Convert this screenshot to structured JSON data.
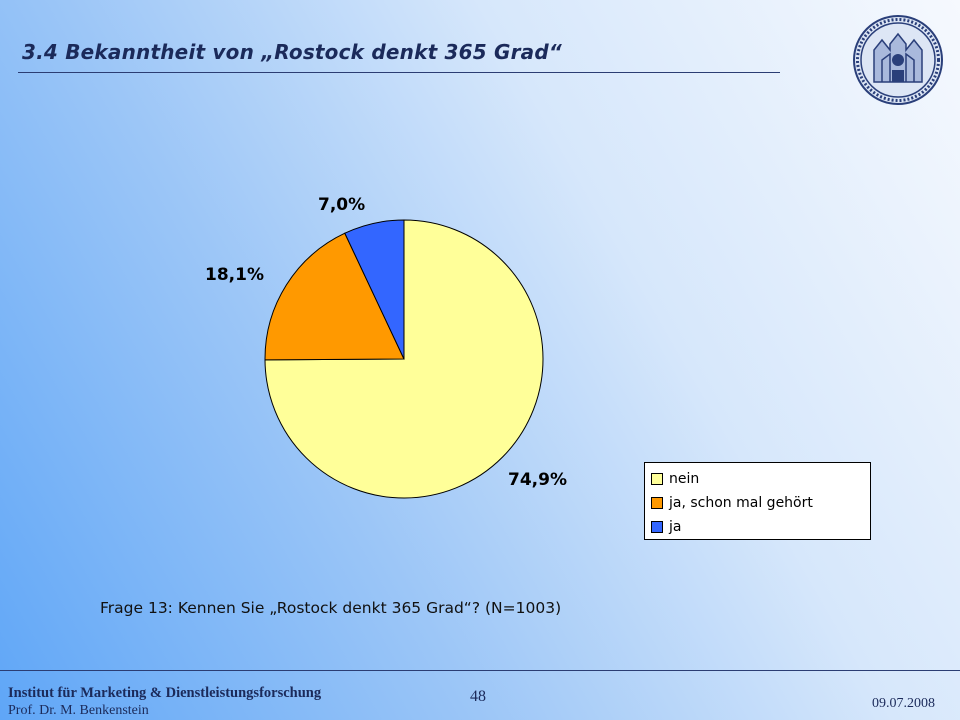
{
  "slide": {
    "title": "3.4 Bekanntheit von „Rostock denkt 365 Grad“",
    "caption": "Frage 13: Kennen Sie „Rostock denkt 365 Grad“? (N=1003)"
  },
  "footer": {
    "institute": "Institut für Marketing & Dienstleistungsforschung",
    "professor": "Prof. Dr. M. Benkenstein",
    "page_number": "48",
    "date": "09.07.2008"
  },
  "logo": {
    "icon": "university-seal-icon"
  },
  "chart_data": {
    "type": "pie",
    "categories": [
      "nein",
      "ja, schon mal gehört",
      "ja"
    ],
    "values": [
      74.9,
      18.1,
      7.0
    ],
    "data_labels": [
      "74,9%",
      "18,1%",
      "7,0%"
    ],
    "colors": [
      "#ffff99",
      "#ff9900",
      "#3366ff"
    ],
    "legend_placement": "bottom-right",
    "start_angle_deg": 0,
    "direction": "clockwise"
  }
}
